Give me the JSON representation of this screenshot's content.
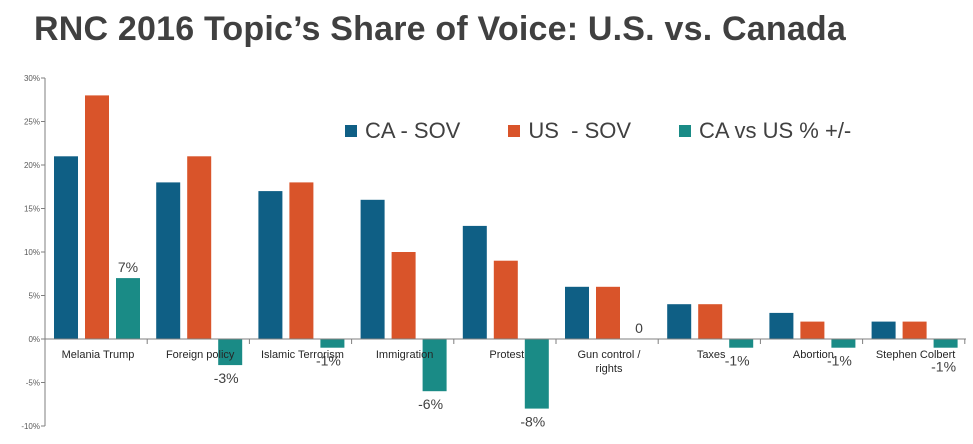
{
  "title": "RNC 2016 Topic’s Share of Voice: U.S. vs. Canada",
  "colors": {
    "ca": "#0f5f85",
    "us": "#d9542a",
    "diff": "#1a8b86",
    "axis": "#7f7f7f",
    "text": "#404040"
  },
  "legend": [
    {
      "label": "CA - SOV",
      "color": "#0f5f85"
    },
    {
      "label": "US  - SOV",
      "color": "#d9542a"
    },
    {
      "label": "CA vs US % +/-",
      "color": "#1a8b86"
    }
  ],
  "chart_data": {
    "type": "bar",
    "title": "RNC 2016 Topic’s Share of Voice: U.S. vs. Canada",
    "categories": [
      "Melania Trump",
      "Foreign policy",
      "Islamic Terrorism",
      "Immigration",
      "Protest",
      "Gun control / rights",
      "Taxes",
      "Abortion",
      "Stephen Colbert"
    ],
    "category_lines": [
      [
        "Melania Trump"
      ],
      [
        "Foreign policy"
      ],
      [
        "Islamic Terrorism"
      ],
      [
        "Immigration"
      ],
      [
        "Protest"
      ],
      [
        "Gun control /",
        "rights"
      ],
      [
        "Taxes"
      ],
      [
        "Abortion"
      ],
      [
        "Stephen Colbert"
      ]
    ],
    "series": [
      {
        "name": "CA - SOV",
        "values": [
          21,
          18,
          17,
          16,
          13,
          6,
          4,
          3,
          2
        ]
      },
      {
        "name": "US  - SOV",
        "values": [
          28,
          21,
          18,
          10,
          9,
          6,
          4,
          2,
          2
        ]
      },
      {
        "name": "CA vs US % +/-",
        "values": [
          7,
          -3,
          -1,
          -6,
          -8,
          0,
          -1,
          -1,
          -1
        ]
      }
    ],
    "data_labels": [
      "7%",
      "-3%",
      "-1%",
      "-6%",
      "-8%",
      "0",
      "-1%",
      "-1%",
      "-1%"
    ],
    "ylim": [
      -10,
      30
    ],
    "yticks": [
      -10,
      -5,
      0,
      5,
      10,
      15,
      20,
      25,
      30
    ],
    "ytick_labels": [
      "-10%",
      "-5%",
      "0%",
      "5%",
      "10%",
      "15%",
      "20%",
      "25%",
      "30%"
    ],
    "xlabel": "",
    "ylabel": "",
    "legend_position": "top-right",
    "grid": false
  }
}
